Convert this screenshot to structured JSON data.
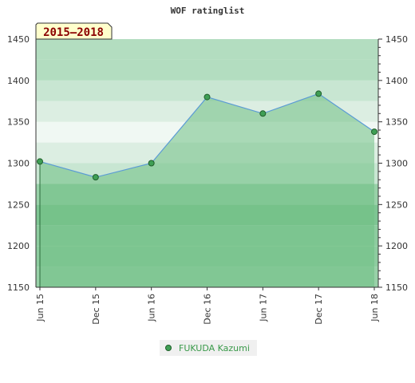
{
  "chart_data": {
    "type": "area",
    "title": "WOF ratinglist",
    "range_label": "2015–2018",
    "x_ticks": [
      "Jun 15",
      "Dec 15",
      "Jun 16",
      "Dec 16",
      "Jun 17",
      "Dec 17",
      "Jun 18"
    ],
    "y_ticks": [
      1150,
      1200,
      1250,
      1300,
      1350,
      1400,
      1450
    ],
    "ylim": [
      1150,
      1450
    ],
    "series": [
      {
        "name": "FUKUDA Kazumi",
        "x": [
          "Jun 15",
          "Dec 15",
          "Jun 16",
          "Dec 16",
          "Jun 17",
          "Dec 17",
          "Jun 18"
        ],
        "values": [
          1302,
          1283,
          1300,
          1380,
          1360,
          1384,
          1338
        ]
      }
    ],
    "legend_position": "bottom-center",
    "colors": {
      "area_fill": "#6fbf83",
      "line": "#5b9bd5",
      "marker": "#3f9f55",
      "marker_stroke": "#1f5f2a",
      "range_box_bg": "#ffffcc"
    }
  }
}
